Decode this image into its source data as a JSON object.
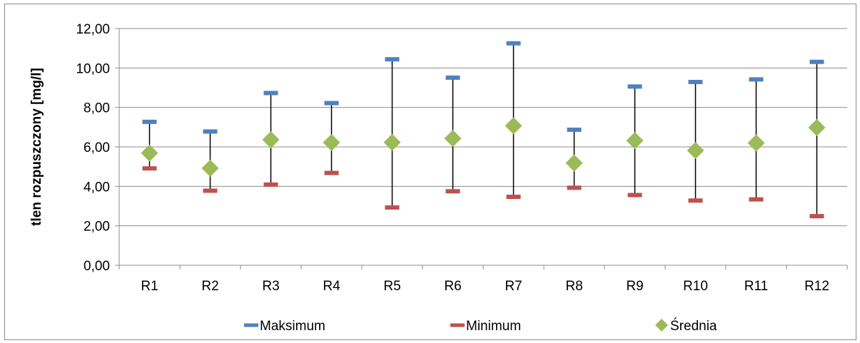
{
  "chart_data": {
    "type": "scatter",
    "title": "",
    "xlabel": "",
    "ylabel": "tlen rozpuszczony [mg/l]",
    "ylim": [
      0,
      12
    ],
    "y_ticks": [
      "0,00",
      "2,00",
      "4,00",
      "6,00",
      "8,00",
      "10,00",
      "12,00"
    ],
    "y_tick_values": [
      0,
      2,
      4,
      6,
      8,
      10,
      12
    ],
    "grid": true,
    "legend_position": "bottom",
    "categories": [
      "R1",
      "R2",
      "R3",
      "R4",
      "R5",
      "R6",
      "R7",
      "R8",
      "R9",
      "R10",
      "R11",
      "R12"
    ],
    "series": [
      {
        "name": "Maksimum",
        "marker": "dash",
        "color": "#4f81bd",
        "values": [
          7.27,
          6.78,
          8.73,
          8.22,
          10.44,
          9.51,
          11.25,
          6.87,
          9.06,
          9.29,
          9.42,
          10.31
        ]
      },
      {
        "name": "Minimum",
        "marker": "dash",
        "color": "#c0504d",
        "values": [
          4.91,
          3.78,
          4.09,
          4.68,
          2.93,
          3.75,
          3.47,
          3.93,
          3.56,
          3.28,
          3.34,
          2.49
        ]
      },
      {
        "name": "Średnia",
        "marker": "diamond",
        "color": "#9bbb59",
        "values": [
          5.69,
          4.92,
          6.36,
          6.22,
          6.23,
          6.43,
          7.07,
          5.18,
          6.32,
          5.82,
          6.2,
          6.98
        ]
      }
    ],
    "error_bar_color": "#000000"
  }
}
